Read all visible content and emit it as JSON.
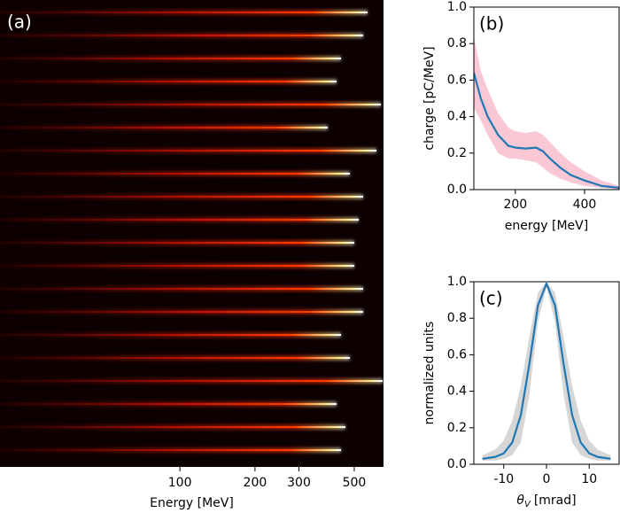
{
  "chart_data": [
    {
      "type": "spectra",
      "label": "(a)",
      "xlabel": "Energy [MeV]",
      "xscale": "log",
      "xlim": [
        19,
        655
      ],
      "xticks": [
        100,
        200,
        300,
        500
      ]
    },
    {
      "type": "line",
      "label": "(b)",
      "xlabel": "energy [MeV]",
      "ylabel": "charge [pC/MeV]",
      "xlim": [
        80,
        500
      ],
      "xticks": [
        200,
        400
      ],
      "ylim": [
        0,
        1
      ],
      "yticks": [
        0.0,
        0.2,
        0.4,
        0.6,
        0.8,
        1.0
      ],
      "ytick_labels": [
        "0.0",
        "0.2",
        "0.4",
        "0.6",
        "0.8",
        "1.0"
      ],
      "x": [
        80,
        100,
        120,
        150,
        180,
        200,
        230,
        260,
        280,
        300,
        330,
        360,
        400,
        450,
        500
      ],
      "values": [
        0.64,
        0.5,
        0.4,
        0.3,
        0.24,
        0.23,
        0.225,
        0.23,
        0.21,
        0.17,
        0.12,
        0.08,
        0.05,
        0.02,
        0.01
      ],
      "upper": [
        0.84,
        0.65,
        0.55,
        0.42,
        0.34,
        0.32,
        0.31,
        0.32,
        0.3,
        0.26,
        0.2,
        0.15,
        0.1,
        0.05,
        0.02
      ],
      "lower": [
        0.45,
        0.38,
        0.3,
        0.2,
        0.17,
        0.17,
        0.16,
        0.15,
        0.12,
        0.09,
        0.06,
        0.04,
        0.02,
        0.01,
        0
      ],
      "color": "#1f77b4",
      "band_color": "#f7b6c6"
    },
    {
      "type": "line",
      "label": "(c)",
      "xlabel": {
        "symbol": "θ",
        "subscript": "V",
        "unit": "[mrad]"
      },
      "ylabel": "normalized units",
      "xlim": [
        -17,
        17
      ],
      "xticks": [
        -10,
        0,
        10
      ],
      "ylim": [
        0,
        1
      ],
      "yticks": [
        0.0,
        0.2,
        0.4,
        0.6,
        0.8,
        1.0
      ],
      "ytick_labels": [
        "0.0",
        "0.2",
        "0.4",
        "0.6",
        "0.8",
        "1.0"
      ],
      "x": [
        -15,
        -12,
        -10,
        -8,
        -6,
        -4,
        -2,
        0,
        2,
        4,
        6,
        8,
        10,
        12,
        15
      ],
      "values": [
        0.03,
        0.04,
        0.06,
        0.12,
        0.27,
        0.55,
        0.87,
        0.99,
        0.87,
        0.55,
        0.27,
        0.12,
        0.06,
        0.04,
        0.03
      ],
      "upper": [
        0.05,
        0.08,
        0.13,
        0.24,
        0.43,
        0.7,
        0.94,
        1.0,
        0.94,
        0.7,
        0.43,
        0.24,
        0.13,
        0.08,
        0.05
      ],
      "lower": [
        0.02,
        0.02,
        0.03,
        0.05,
        0.12,
        0.38,
        0.78,
        0.97,
        0.78,
        0.38,
        0.12,
        0.05,
        0.03,
        0.02,
        0.02
      ],
      "color": "#1f77b4",
      "band_color": "#c8c8c8"
    }
  ]
}
